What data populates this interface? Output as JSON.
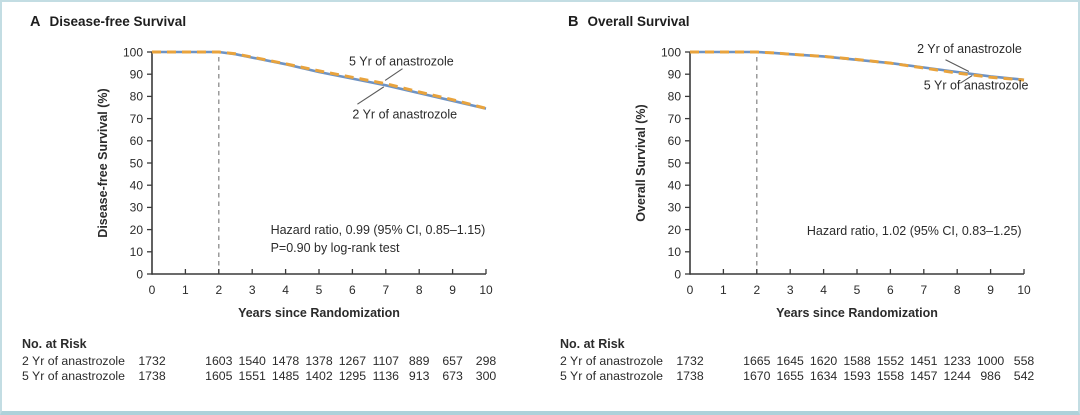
{
  "figure": {
    "background": "#ffffff",
    "accent_border": "#c3dde3"
  },
  "chart_data": [
    {
      "type": "line",
      "letter": "A",
      "title": "Disease-free Survival",
      "ylabel": "Disease-free Survival (%)",
      "xlabel": "Years since Randomization",
      "xlim": [
        0,
        10
      ],
      "ylim": [
        0,
        100
      ],
      "xticks": [
        0,
        1,
        2,
        3,
        4,
        5,
        6,
        7,
        8,
        9,
        10
      ],
      "yticks": [
        0,
        10,
        20,
        30,
        40,
        50,
        60,
        70,
        80,
        90,
        100
      ],
      "grid": false,
      "reference_line_x": 2,
      "x": [
        0,
        1,
        2,
        2.5,
        3,
        4,
        5,
        6,
        7,
        8,
        9,
        10
      ],
      "series": [
        {
          "name": "2 Yr of anastrozole",
          "color": "#6e93c4",
          "style": "solid",
          "values": [
            100,
            100,
            100,
            99,
            97.5,
            94.5,
            91,
            88,
            85,
            81.5,
            78,
            74.5
          ]
        },
        {
          "name": "5 Yr of anastrozole",
          "color": "#e8a33d",
          "style": "dashed",
          "values": [
            100,
            100,
            100,
            99.2,
            97.7,
            94.7,
            91.5,
            88.6,
            85.7,
            82,
            78.5,
            74.6
          ]
        }
      ],
      "curve_labels": [
        {
          "text": "5 Yr of anastrozole",
          "x": 5.9,
          "y": 94,
          "leader": [
            7.5,
            92.5,
            6.98,
            87.2
          ]
        },
        {
          "text": "2 Yr of anastrozole",
          "x": 6.0,
          "y": 70,
          "leader": [
            6.15,
            76.5,
            6.94,
            84.3
          ]
        }
      ],
      "annotation": {
        "x": 3.55,
        "y": 18,
        "line_step": 8,
        "lines": [
          "Hazard ratio, 0.99 (95% CI, 0.85–1.15)",
          "P=0.90 by log-rank test"
        ]
      },
      "at_risk": {
        "heading": "No. at Risk",
        "x": [
          0,
          2,
          3,
          4,
          5,
          6,
          7,
          8,
          9,
          10
        ],
        "rows": [
          {
            "label": "2 Yr of anastrozole",
            "counts": [
              1732,
              1603,
              1540,
              1478,
              1378,
              1267,
              1107,
              889,
              657,
              298
            ]
          },
          {
            "label": "5 Yr of anastrozole",
            "counts": [
              1738,
              1605,
              1551,
              1485,
              1402,
              1295,
              1136,
              913,
              673,
              300
            ]
          }
        ]
      }
    },
    {
      "type": "line",
      "letter": "B",
      "title": "Overall Survival",
      "ylabel": "Overall Survival (%)",
      "xlabel": "Years since Randomization",
      "xlim": [
        0,
        10
      ],
      "ylim": [
        0,
        100
      ],
      "xticks": [
        0,
        1,
        2,
        3,
        4,
        5,
        6,
        7,
        8,
        9,
        10
      ],
      "yticks": [
        0,
        10,
        20,
        30,
        40,
        50,
        60,
        70,
        80,
        90,
        100
      ],
      "grid": false,
      "reference_line_x": 2,
      "x": [
        0,
        1,
        2,
        2.5,
        3,
        4,
        5,
        6,
        7,
        8,
        9,
        10
      ],
      "series": [
        {
          "name": "2 Yr of anastrozole",
          "color": "#6e93c4",
          "style": "solid",
          "values": [
            100,
            100,
            100,
            99.6,
            99,
            98,
            96.5,
            95,
            93,
            91,
            89,
            87.5
          ]
        },
        {
          "name": "5 Yr of anastrozole",
          "color": "#e8a33d",
          "style": "dashed",
          "values": [
            100,
            100,
            100,
            99.6,
            99,
            98,
            96.6,
            95,
            92.8,
            90.5,
            88.6,
            87.4
          ]
        }
      ],
      "curve_labels": [
        {
          "text": "2 Yr of anastrozole",
          "x": 6.8,
          "y": 99.5,
          "leader": [
            7.65,
            96.5,
            8.35,
            91.2
          ]
        },
        {
          "text": "5 Yr of anastrozole",
          "x": 7.0,
          "y": 83,
          "leader": [
            8.1,
            86,
            8.45,
            89.4
          ]
        }
      ],
      "annotation": {
        "x": 3.5,
        "y": 17.5,
        "line_step": 8,
        "lines": [
          "Hazard ratio, 1.02 (95% CI, 0.83–1.25)"
        ]
      },
      "at_risk": {
        "heading": "No. at Risk",
        "x": [
          0,
          2,
          3,
          4,
          5,
          6,
          7,
          8,
          9,
          10
        ],
        "rows": [
          {
            "label": "2 Yr of anastrozole",
            "counts": [
              1732,
              1665,
              1645,
              1620,
              1588,
              1552,
              1451,
              1233,
              1000,
              558
            ]
          },
          {
            "label": "5 Yr of anastrozole",
            "counts": [
              1738,
              1670,
              1655,
              1634,
              1593,
              1558,
              1457,
              1244,
              986,
              542
            ]
          }
        ]
      }
    }
  ]
}
